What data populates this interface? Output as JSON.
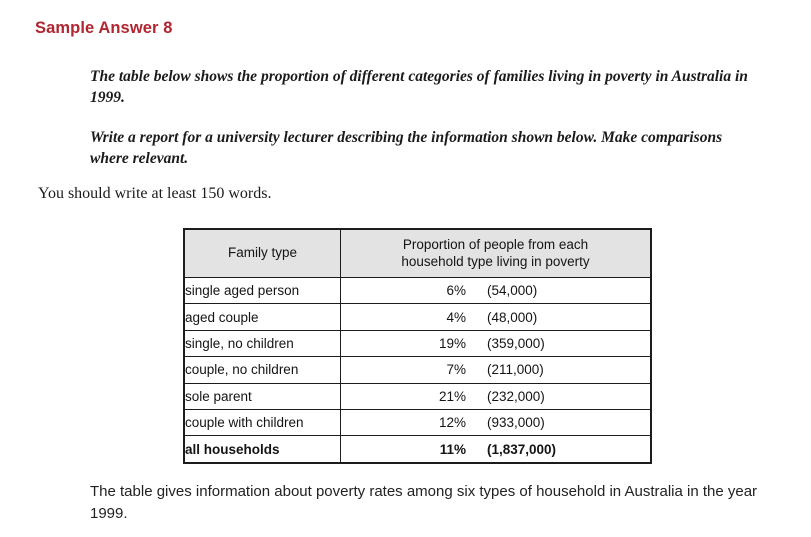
{
  "title": {
    "text": "Sample Answer 8",
    "color": "#b02530"
  },
  "prompt": {
    "paragraph1": "The table below shows the proportion of different categories of families living in poverty in Australia in 1999.",
    "paragraph2": "Write a report for a university lecturer describing the information shown below. Make comparisons where relevant.",
    "note": "You should write at least 150 words."
  },
  "table": {
    "col1_header": "Family type",
    "col2_header": "Proportion of people from each household type living in poverty",
    "header_background": "#e3e3e3",
    "border_color": "#1c1c1c",
    "rows": [
      {
        "family_type": "single aged person",
        "percent": "6%",
        "count": "(54,000)",
        "bold": false
      },
      {
        "family_type": "aged couple",
        "percent": "4%",
        "count": "(48,000)",
        "bold": false
      },
      {
        "family_type": "single, no children",
        "percent": "19%",
        "count": "(359,000)",
        "bold": false
      },
      {
        "family_type": "couple, no children",
        "percent": "7%",
        "count": "(211,000)",
        "bold": false
      },
      {
        "family_type": "sole parent",
        "percent": "21%",
        "count": "(232,000)",
        "bold": false
      },
      {
        "family_type": "couple with children",
        "percent": "12%",
        "count": "(933,000)",
        "bold": false
      },
      {
        "family_type": "all households",
        "percent": "11%",
        "count": "(1,837,000)",
        "bold": true
      }
    ]
  },
  "closing": {
    "text": "The table gives information about poverty rates among six types of household in Australia in the year 1999."
  }
}
